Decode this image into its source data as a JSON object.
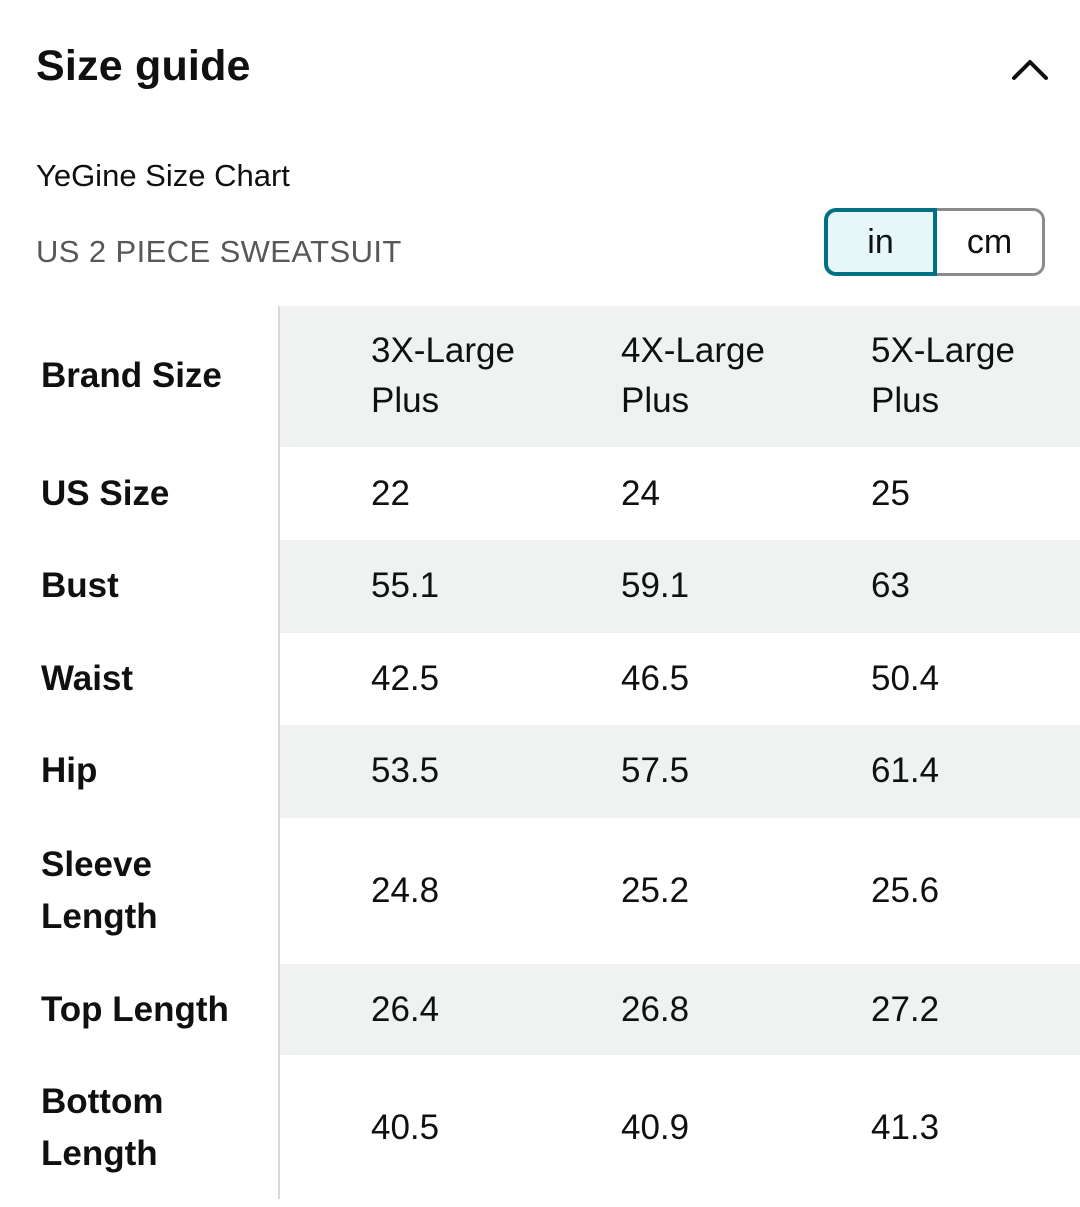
{
  "header": {
    "title": "Size guide"
  },
  "chart": {
    "name": "YeGine Size Chart",
    "subtitle": "US 2 PIECE SWEATSUIT"
  },
  "units": {
    "in": "in",
    "cm": "cm",
    "selected": "in"
  },
  "table": {
    "columns": [
      {
        "line1": "3X-Large",
        "line2": "Plus"
      },
      {
        "line1": "4X-Large",
        "line2": "Plus"
      },
      {
        "line1": "5X-Large",
        "line2": "Plus"
      }
    ],
    "rows": [
      {
        "label": "Brand Size"
      },
      {
        "label": "US Size",
        "values": [
          "22",
          "24",
          "25"
        ]
      },
      {
        "label": "Bust",
        "values": [
          "55.1",
          "59.1",
          "63"
        ]
      },
      {
        "label": "Waist",
        "values": [
          "42.5",
          "46.5",
          "50.4"
        ]
      },
      {
        "label": "Hip",
        "values": [
          "53.5",
          "57.5",
          "61.4"
        ]
      },
      {
        "label_line1": "Sleeve",
        "label_line2": "Length",
        "values": [
          "24.8",
          "25.2",
          "25.6"
        ]
      },
      {
        "label": "Top Length",
        "values": [
          "26.4",
          "26.8",
          "27.2"
        ]
      },
      {
        "label_line1": "Bottom",
        "label_line2": "Length",
        "values": [
          "40.5",
          "40.9",
          "41.3"
        ]
      }
    ]
  },
  "colors": {
    "accent": "#007185",
    "shade": "#f0f2f2",
    "selected_bg": "#e7f7f9"
  },
  "icons": {
    "collapse": "chevron-up-icon"
  }
}
